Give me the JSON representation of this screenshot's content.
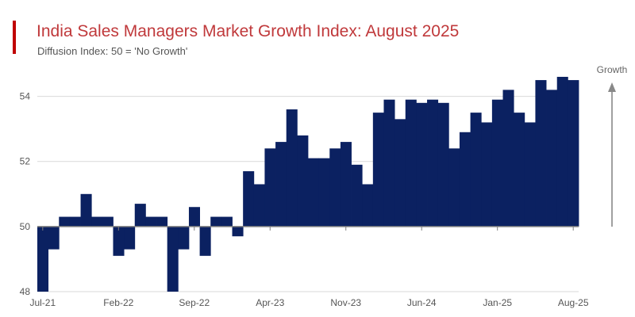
{
  "title": "India Sales Managers Market Growth Index: August 2025",
  "subtitle": "Diffusion Index: 50 = 'No Growth'",
  "colors": {
    "bar": "#0b2161",
    "title": "#c0393b",
    "accent": "#c00000",
    "grid": "#d9d9d9",
    "arrow": "#888888"
  },
  "chart_data": {
    "type": "bar",
    "title": "India Sales Managers Market Growth Index: August 2025",
    "subtitle": "Diffusion Index: 50 = 'No Growth'",
    "baseline": 50,
    "ylim": [
      48,
      55.5
    ],
    "yticks": [
      48,
      50,
      52,
      54
    ],
    "xtick_labels": [
      "Jul-21",
      "Feb-22",
      "Sep-22",
      "Apr-23",
      "Nov-23",
      "Jun-24",
      "Jan-25",
      "Aug-25"
    ],
    "annotation": "Growth",
    "grid": true,
    "values": [
      48.0,
      49.3,
      50.3,
      50.3,
      51.0,
      50.3,
      50.3,
      49.1,
      49.3,
      50.7,
      50.3,
      50.3,
      47.5,
      49.3,
      50.6,
      49.1,
      50.3,
      50.3,
      49.7,
      51.7,
      51.3,
      52.4,
      52.6,
      53.6,
      52.8,
      52.1,
      52.1,
      52.4,
      52.6,
      51.9,
      51.3,
      53.5,
      53.9,
      53.3,
      53.9,
      53.8,
      53.9,
      53.8,
      52.4,
      52.9,
      53.5,
      53.2,
      53.9,
      54.2,
      53.5,
      53.2,
      54.5,
      54.2,
      54.6,
      54.5
    ]
  }
}
